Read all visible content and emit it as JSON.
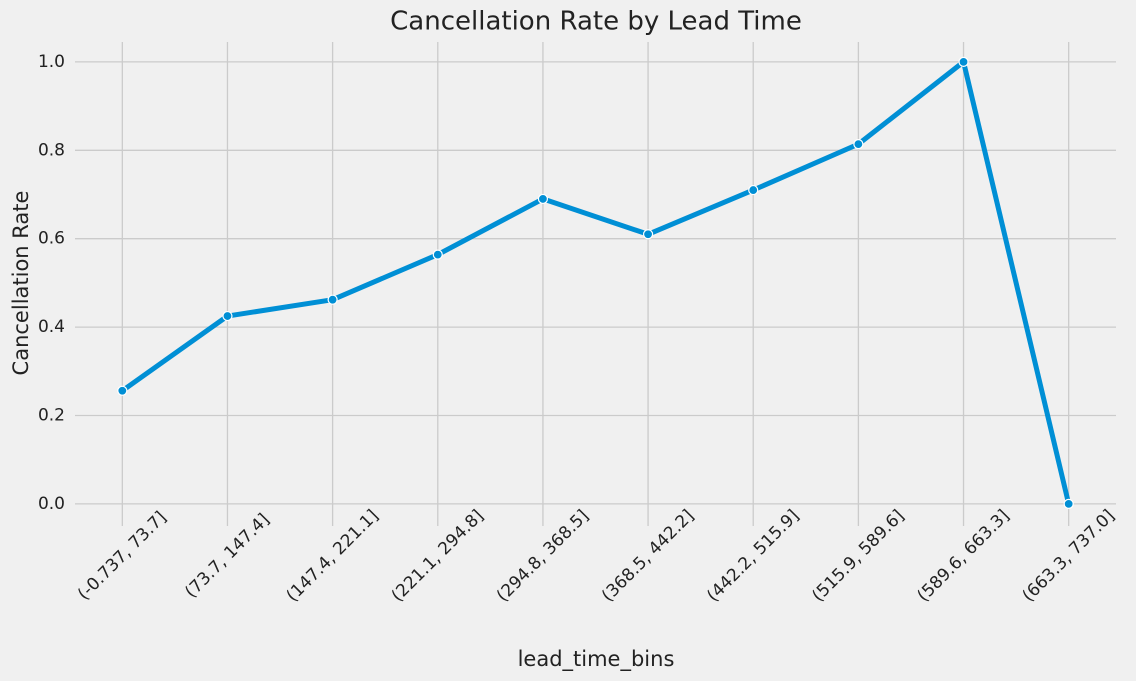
{
  "chart_data": {
    "type": "line",
    "title": "Cancellation Rate by Lead Time",
    "x_label": "lead_time_bins",
    "y_label": "Cancellation Rate",
    "categories": [
      "(-0.737, 73.7]",
      "(73.7, 147.4]",
      "(147.4, 221.1]",
      "(221.1, 294.8]",
      "(294.8, 368.5]",
      "(368.5, 442.2]",
      "(442.2, 515.9]",
      "(515.9, 589.6]",
      "(589.6, 663.3]",
      "(663.3, 737.0]"
    ],
    "values": [
      0.256,
      0.425,
      0.462,
      0.564,
      0.69,
      0.61,
      0.71,
      0.814,
      1.0,
      0.0
    ],
    "color": "#008fd5",
    "ylim": [
      -0.05,
      1.045
    ],
    "yticks": [
      {
        "value": 0,
        "label": "0.0"
      },
      0.2,
      0.4,
      0.6,
      0.8,
      {
        "value": 1,
        "label": "1.0"
      }
    ],
    "grid": true
  }
}
